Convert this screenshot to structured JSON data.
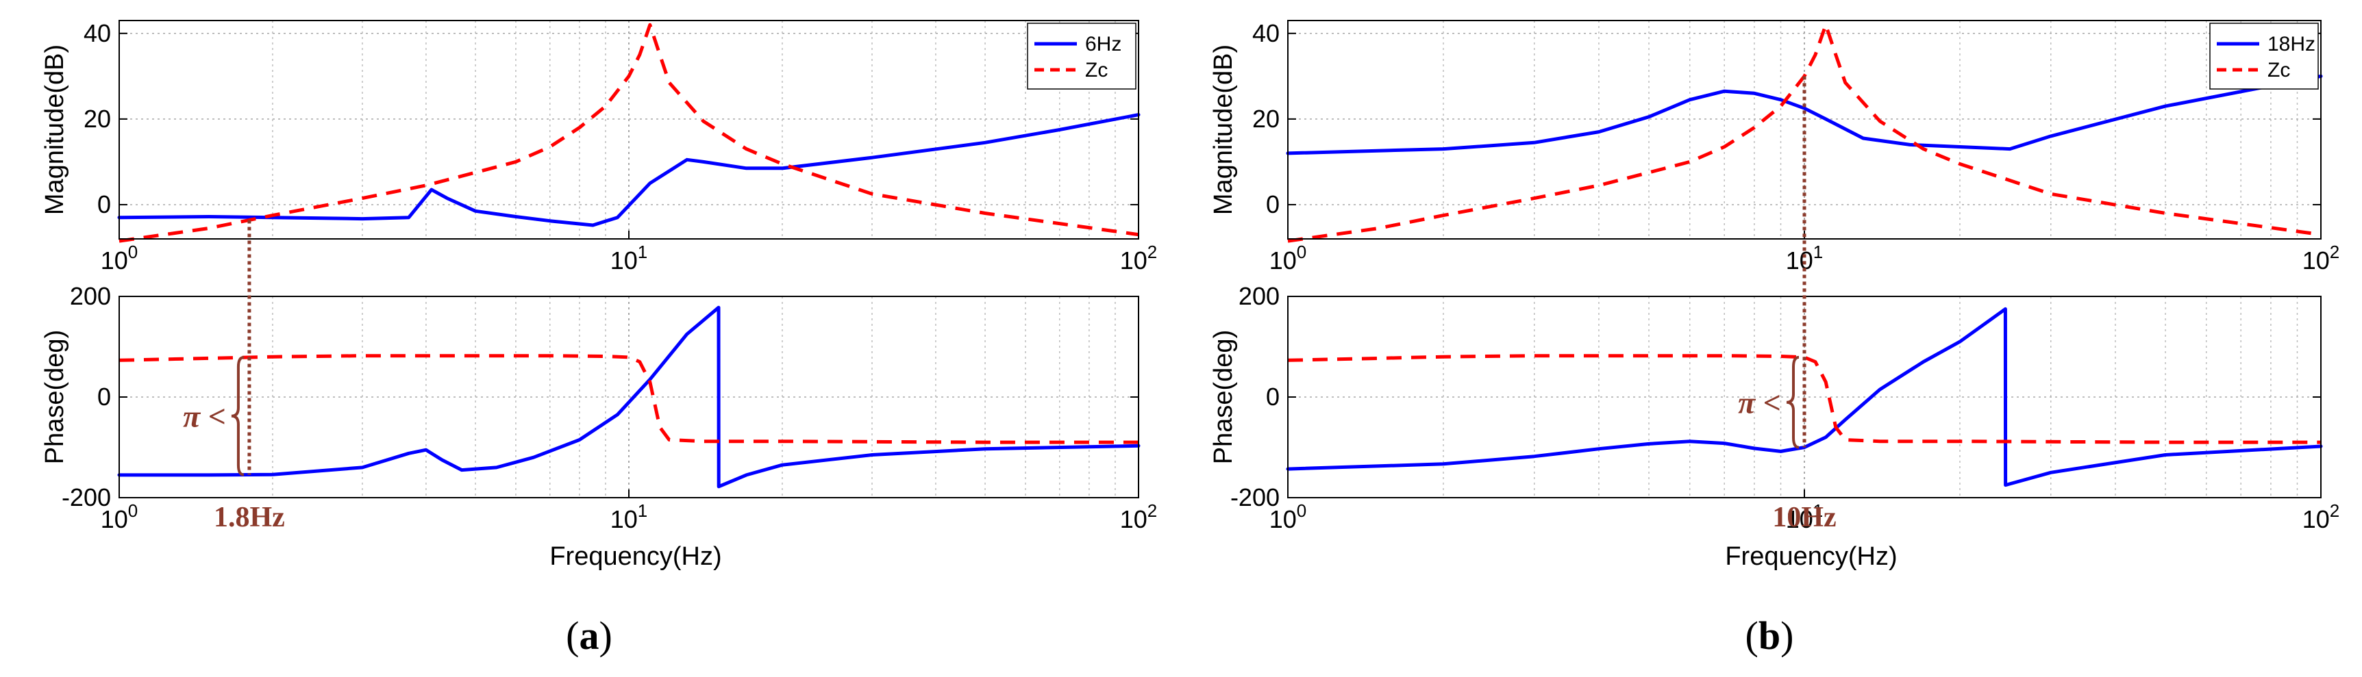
{
  "figure": {
    "captions": [
      "(a)",
      "(b)"
    ],
    "caption_letters": [
      "a",
      "b"
    ]
  },
  "colors": {
    "series_solid": "#0000ff",
    "series_dashed": "#ff0000",
    "annotation": "#8B3A2B",
    "grid": "#bdbdbd"
  },
  "chart_data": [
    {
      "type": "line",
      "panel": "a",
      "subplot": "magnitude",
      "xlabel": "",
      "ylabel": "Magnitude(dB)",
      "xscale": "log",
      "xlim": [
        1,
        100
      ],
      "ylim": [
        -8,
        43
      ],
      "yticks": [
        0,
        20,
        40
      ],
      "ytick_labels": [
        "0",
        "20",
        "40"
      ],
      "xtick_labels": [
        {
          "base": "10",
          "exp": "0"
        },
        {
          "base": "10",
          "exp": "1"
        },
        {
          "base": "10",
          "exp": "2"
        }
      ],
      "grid": true,
      "legend": "top-right",
      "series": [
        {
          "name": "6Hz",
          "style": "solid",
          "x": [
            1,
            1.5,
            2,
            3,
            3.7,
            4.1,
            4.4,
            5,
            6,
            7,
            8.5,
            9.5,
            11,
            13,
            14,
            17,
            20,
            30,
            50,
            70,
            100
          ],
          "y": [
            -3,
            -2.8,
            -3,
            -3.3,
            -3,
            3.5,
            1.5,
            -1.5,
            -2.8,
            -3.8,
            -4.8,
            -3,
            5,
            10.5,
            10,
            8.5,
            8.5,
            11,
            14.5,
            17.5,
            21
          ]
        },
        {
          "name": "Zc",
          "style": "dashed",
          "x": [
            1,
            1.5,
            2,
            3,
            4,
            5,
            6,
            7,
            8,
            9,
            10,
            10.5,
            11,
            11.5,
            12,
            14,
            17,
            20,
            30,
            50,
            100
          ],
          "y": [
            -8.5,
            -5.5,
            -2.5,
            1.5,
            4.5,
            7.5,
            10,
            13.5,
            18,
            23,
            30,
            35,
            42,
            35,
            28.5,
            19.5,
            13,
            9.5,
            2.5,
            -2,
            -7
          ]
        }
      ]
    },
    {
      "type": "line",
      "panel": "a",
      "subplot": "phase",
      "xlabel": "Frequency(Hz)",
      "ylabel": "Phase(deg)",
      "xscale": "log",
      "xlim": [
        1,
        100
      ],
      "ylim": [
        -200,
        200
      ],
      "yticks": [
        -200,
        0,
        200
      ],
      "ytick_labels": [
        "-200",
        "0",
        "200"
      ],
      "xtick_labels": [
        {
          "base": "10",
          "exp": "0"
        },
        {
          "base": "10",
          "exp": "1"
        },
        {
          "base": "10",
          "exp": "2"
        }
      ],
      "grid": true,
      "series": [
        {
          "name": "6Hz",
          "style": "solid",
          "x": [
            1,
            1.5,
            2,
            3,
            3.7,
            4,
            4.3,
            4.7,
            5.5,
            6.5,
            8,
            9.5,
            11,
            13,
            15,
            15.01,
            17,
            20,
            30,
            50,
            100
          ],
          "y": [
            -155,
            -155,
            -154,
            -140,
            -112,
            -105,
            -125,
            -145,
            -140,
            -120,
            -85,
            -35,
            35,
            125,
            178,
            -178,
            -155,
            -135,
            -115,
            -103,
            -97
          ]
        },
        {
          "name": "Zc",
          "style": "dashed",
          "x": [
            1,
            1.5,
            2,
            3,
            5,
            7,
            9,
            10,
            10.5,
            11,
            11.5,
            12,
            14,
            20,
            50,
            100
          ],
          "y": [
            73,
            77,
            80,
            82,
            82,
            82,
            81,
            79,
            70,
            30,
            -60,
            -85,
            -88,
            -88,
            -90,
            -90
          ]
        }
      ],
      "annotations": [
        {
          "text": "1.8Hz",
          "x": 1.8
        },
        {
          "text": "π <",
          "x": 1.8
        }
      ]
    },
    {
      "type": "line",
      "panel": "b",
      "subplot": "magnitude",
      "xlabel": "",
      "ylabel": "Magnitude(dB)",
      "xscale": "log",
      "xlim": [
        1,
        100
      ],
      "ylim": [
        -8,
        43
      ],
      "yticks": [
        0,
        20,
        40
      ],
      "ytick_labels": [
        "0",
        "20",
        "40"
      ],
      "xtick_labels": [
        {
          "base": "10",
          "exp": "0"
        },
        {
          "base": "10",
          "exp": "1"
        },
        {
          "base": "10",
          "exp": "2"
        }
      ],
      "grid": true,
      "legend": "top-right",
      "series": [
        {
          "name": "18Hz",
          "style": "solid",
          "x": [
            1,
            2,
            3,
            4,
            5,
            6,
            7,
            8,
            9,
            10,
            11,
            13,
            16,
            20,
            25,
            30,
            50,
            100
          ],
          "y": [
            12,
            13,
            14.5,
            17,
            20.5,
            24.5,
            26.5,
            26,
            24.5,
            22.5,
            20,
            15.5,
            14,
            13.5,
            13,
            16,
            23,
            30
          ]
        },
        {
          "name": "Zc",
          "style": "dashed",
          "x": [
            1,
            1.5,
            2,
            3,
            4,
            5,
            6,
            7,
            8,
            9,
            10,
            10.5,
            11,
            11.5,
            12,
            14,
            17,
            20,
            30,
            50,
            100
          ],
          "y": [
            -8.5,
            -5.5,
            -2.5,
            1.5,
            4.5,
            7.5,
            10,
            13.5,
            18,
            23,
            30,
            35,
            42,
            35,
            28.5,
            19.5,
            13,
            9.5,
            2.5,
            -2,
            -7
          ]
        }
      ]
    },
    {
      "type": "line",
      "panel": "b",
      "subplot": "phase",
      "xlabel": "Frequency(Hz)",
      "ylabel": "Phase(deg)",
      "xscale": "log",
      "xlim": [
        1,
        100
      ],
      "ylim": [
        -200,
        200
      ],
      "yticks": [
        -200,
        0,
        200
      ],
      "ytick_labels": [
        "-200",
        "0",
        "200"
      ],
      "xtick_labels": [
        {
          "base": "10",
          "exp": "0"
        },
        {
          "base": "10",
          "exp": "1"
        },
        {
          "base": "10",
          "exp": "2"
        }
      ],
      "grid": true,
      "series": [
        {
          "name": "18Hz",
          "style": "solid",
          "x": [
            1,
            2,
            3,
            4,
            5,
            6,
            7,
            8,
            9,
            10,
            11,
            12,
            14,
            17,
            20,
            24.5,
            24.51,
            30,
            50,
            100
          ],
          "y": [
            -143,
            -133,
            -118,
            -103,
            -93,
            -88,
            -92,
            -102,
            -108,
            -100,
            -80,
            -45,
            15,
            70,
            110,
            175,
            -175,
            -150,
            -115,
            -98
          ]
        },
        {
          "name": "Zc",
          "style": "dashed",
          "x": [
            1,
            1.5,
            2,
            3,
            5,
            7,
            9,
            10,
            10.5,
            11,
            11.5,
            12,
            14,
            20,
            50,
            100
          ],
          "y": [
            73,
            77,
            80,
            82,
            82,
            82,
            81,
            79,
            70,
            30,
            -60,
            -85,
            -88,
            -88,
            -90,
            -90
          ]
        }
      ],
      "annotations": [
        {
          "text": "10Hz",
          "x": 10
        },
        {
          "text": "π <",
          "x": 10
        }
      ]
    }
  ]
}
